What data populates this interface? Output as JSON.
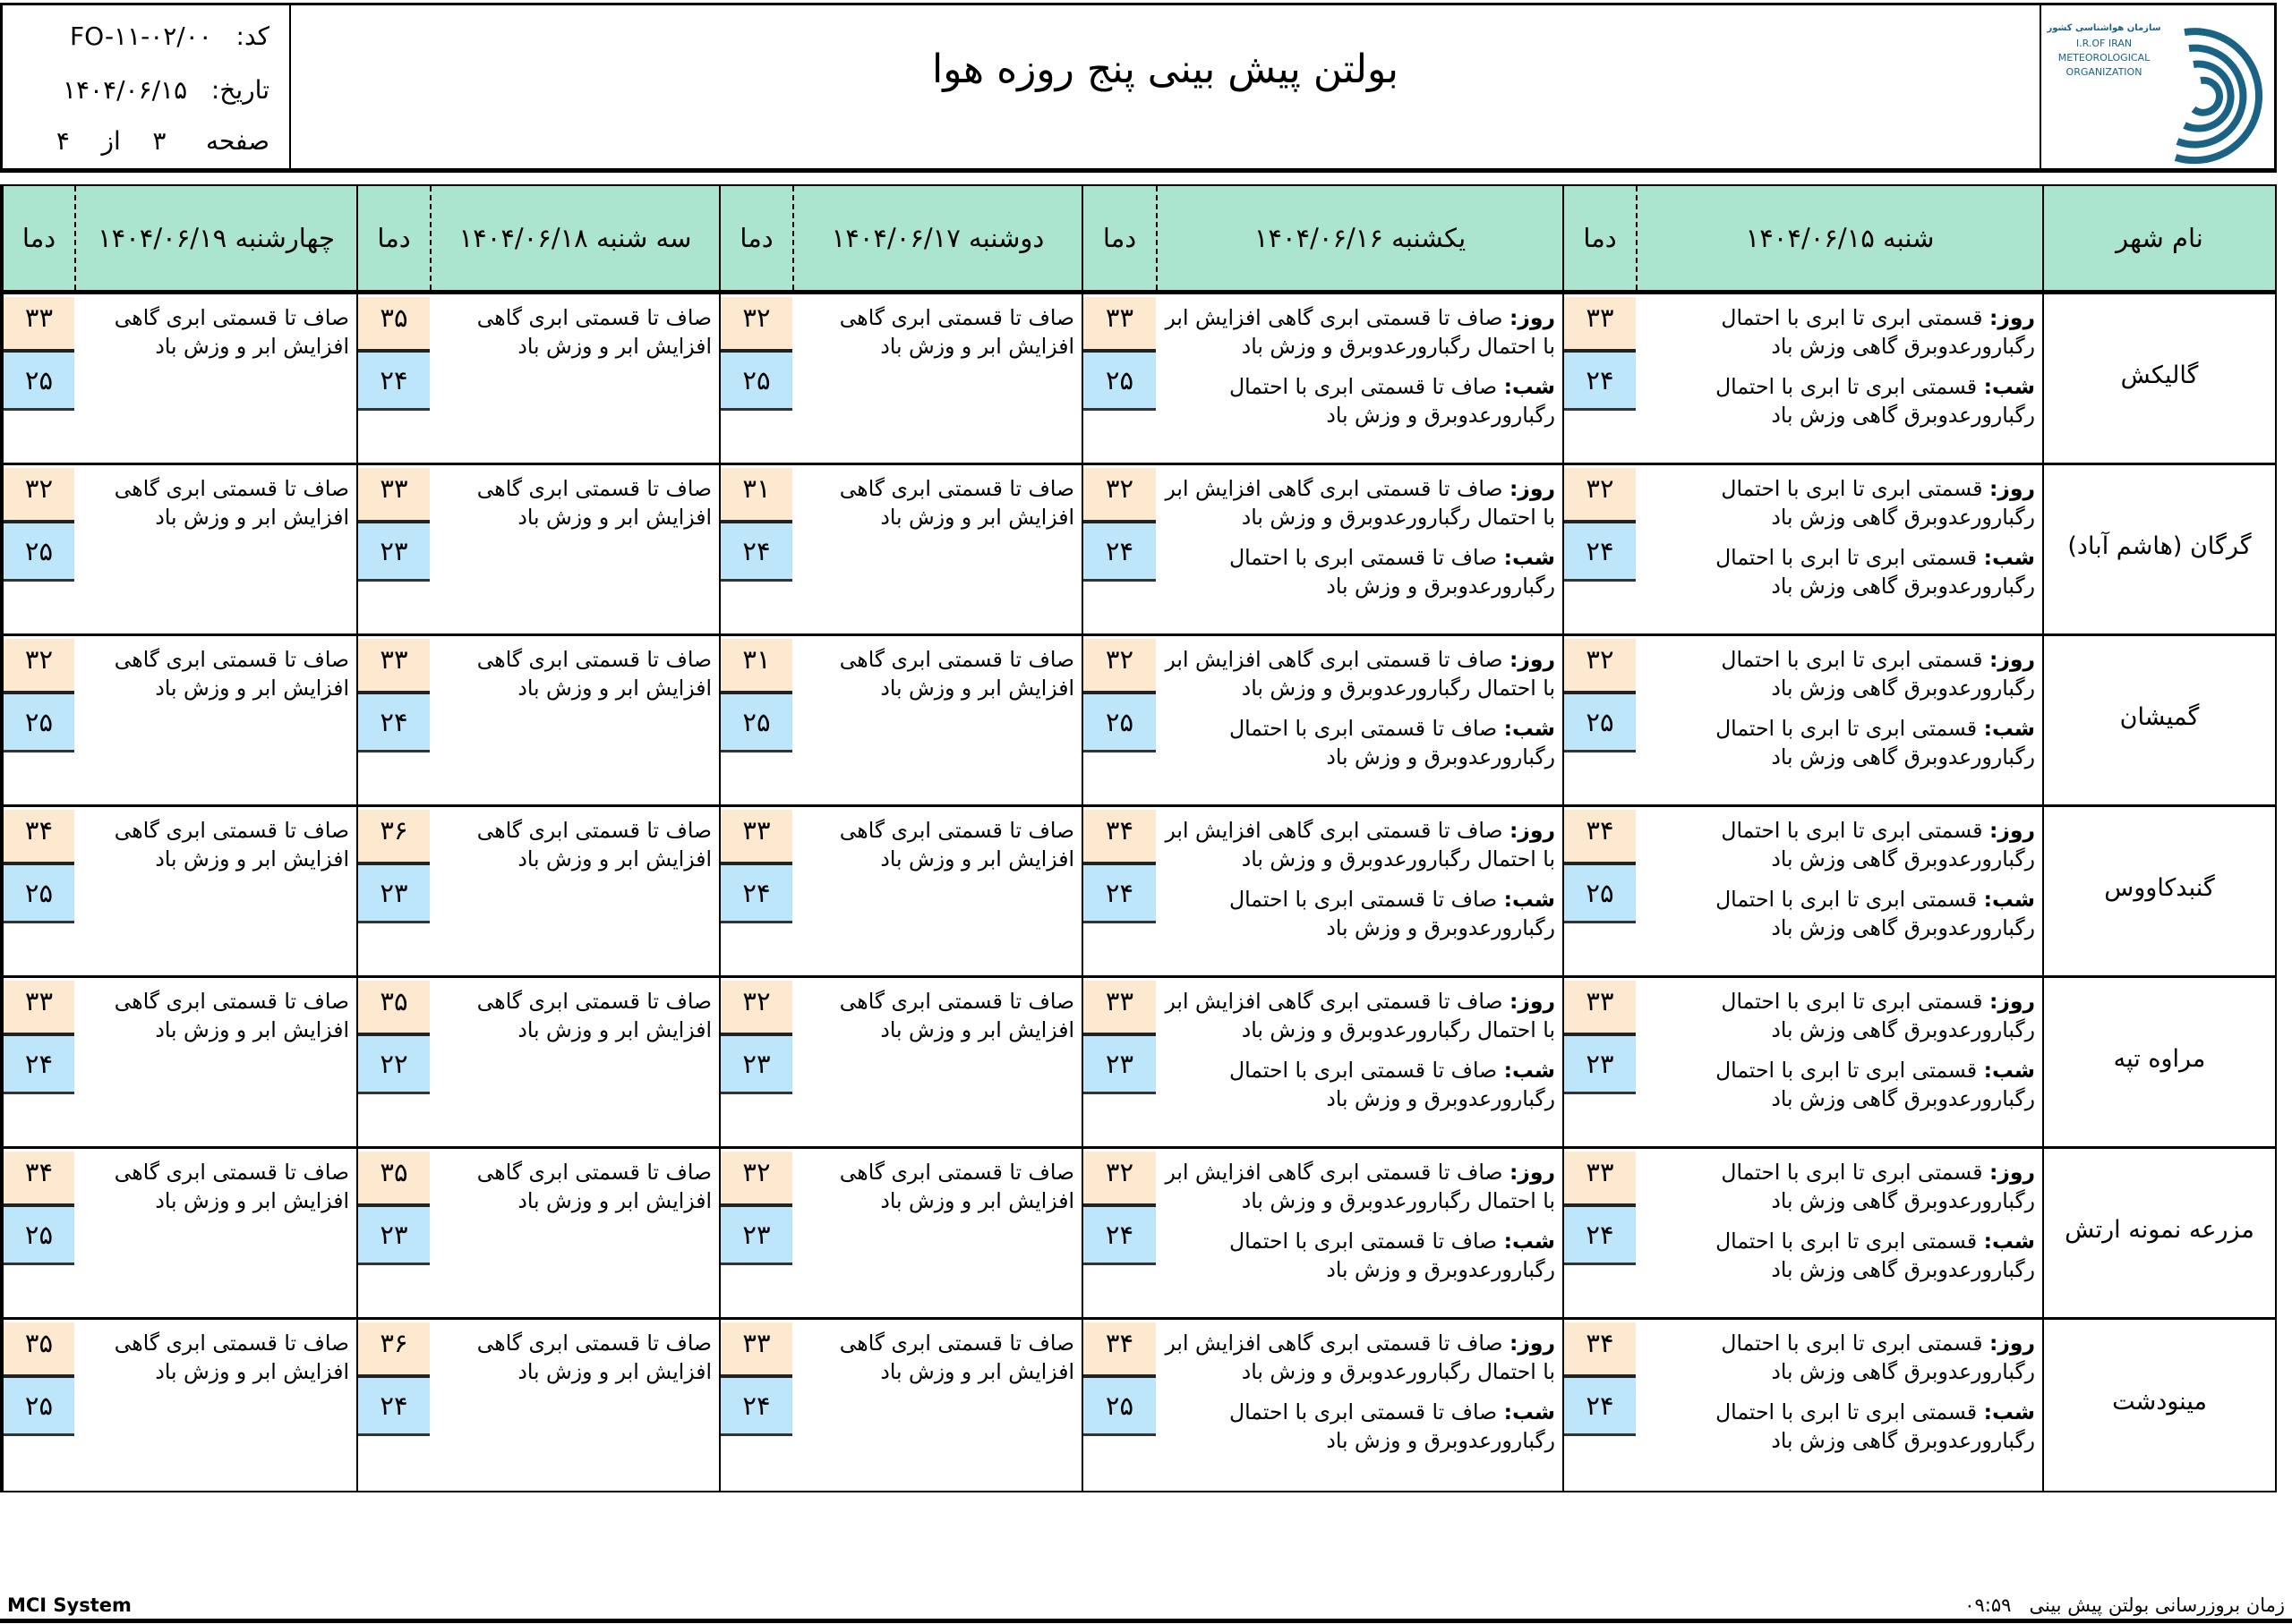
{
  "header": {
    "title": "بولتن پیش بینی پنج روزه هوا",
    "code_label": "کد:",
    "code": "FO-۱۱-۰۲/۰۰",
    "date_label": "تاریخ:",
    "date": "۱۴۰۴/۰۶/۱۵",
    "page_label": "صفحه",
    "page": "۳",
    "of_label": "از",
    "pages": "۴",
    "logo_text": [
      "سازمان هواشناسی کشور",
      "I.R.OF IRAN",
      "METEOROLOGICAL",
      "ORGANIZATION"
    ]
  },
  "colors": {
    "header_bg": "#abe5d0",
    "max_temp_bg": "#fde9d0",
    "min_temp_bg": "#bde6fa",
    "logo": "#1b6384"
  },
  "table": {
    "city_header": "نام شهر",
    "temp_header": "دما",
    "days": [
      "شنبه ۱۴۰۴/۰۶/۱۵",
      "یکشنبه ۱۴۰۴/۰۶/۱۶",
      "دوشنبه ۱۴۰۴/۰۶/۱۷",
      "سه شنبه ۱۴۰۴/۰۶/۱۸",
      "چهارشنبه ۱۴۰۴/۰۶/۱۹"
    ],
    "day_label": "روز:",
    "night_label": "شب:",
    "forecasts": [
      {
        "day": "قسمتی ابری تا ابری با احتمال رگبارورعدوبرق گاهی وزش باد",
        "night": "قسمتی ابری تا ابری با احتمال رگبارورعدوبرق گاهی وزش باد"
      },
      {
        "day": "صاف تا قسمتی ابری گاهی افزایش ابر با احتمال رگبارورعدوبرق و وزش باد",
        "night": "صاف تا قسمتی ابری با احتمال رگبارورعدوبرق و وزش باد"
      },
      {
        "text": "صاف تا قسمتی ابری گاهی افزایش ابر و وزش باد"
      },
      {
        "text": "صاف تا قسمتی ابری گاهی افزایش ابر و وزش باد"
      },
      {
        "text": "صاف تا قسمتی ابری گاهی افزایش ابر و وزش باد"
      }
    ],
    "rows": [
      {
        "city": "گالیکش",
        "temps": [
          [
            "۳۳",
            "۲۴"
          ],
          [
            "۳۳",
            "۲۵"
          ],
          [
            "۳۲",
            "۲۵"
          ],
          [
            "۳۵",
            "۲۴"
          ],
          [
            "۳۳",
            "۲۵"
          ]
        ]
      },
      {
        "city": "گرگان (هاشم آباد)",
        "temps": [
          [
            "۳۲",
            "۲۴"
          ],
          [
            "۳۲",
            "۲۴"
          ],
          [
            "۳۱",
            "۲۴"
          ],
          [
            "۳۳",
            "۲۳"
          ],
          [
            "۳۲",
            "۲۵"
          ]
        ]
      },
      {
        "city": "گمیشان",
        "temps": [
          [
            "۳۲",
            "۲۵"
          ],
          [
            "۳۲",
            "۲۵"
          ],
          [
            "۳۱",
            "۲۵"
          ],
          [
            "۳۳",
            "۲۴"
          ],
          [
            "۳۲",
            "۲۵"
          ]
        ]
      },
      {
        "city": "گنبدکاووس",
        "temps": [
          [
            "۳۴",
            "۲۵"
          ],
          [
            "۳۴",
            "۲۴"
          ],
          [
            "۳۳",
            "۲۴"
          ],
          [
            "۳۶",
            "۲۳"
          ],
          [
            "۳۴",
            "۲۵"
          ]
        ]
      },
      {
        "city": "مراوه تپه",
        "temps": [
          [
            "۳۳",
            "۲۳"
          ],
          [
            "۳۳",
            "۲۳"
          ],
          [
            "۳۲",
            "۲۳"
          ],
          [
            "۳۵",
            "۲۲"
          ],
          [
            "۳۳",
            "۲۴"
          ]
        ]
      },
      {
        "city": "مزرعه نمونه ارتش",
        "temps": [
          [
            "۳۳",
            "۲۴"
          ],
          [
            "۳۲",
            "۲۴"
          ],
          [
            "۳۲",
            "۲۳"
          ],
          [
            "۳۵",
            "۲۳"
          ],
          [
            "۳۴",
            "۲۵"
          ]
        ]
      },
      {
        "city": "مینودشت",
        "temps": [
          [
            "۳۴",
            "۲۴"
          ],
          [
            "۳۴",
            "۲۵"
          ],
          [
            "۳۳",
            "۲۴"
          ],
          [
            "۳۶",
            "۲۴"
          ],
          [
            "۳۵",
            "۲۵"
          ]
        ]
      }
    ]
  },
  "footer": {
    "system": "MCI System",
    "update_label": "زمان بروزرسانی بولتن پیش بینی",
    "update_time": "۰۹:۵۹"
  }
}
